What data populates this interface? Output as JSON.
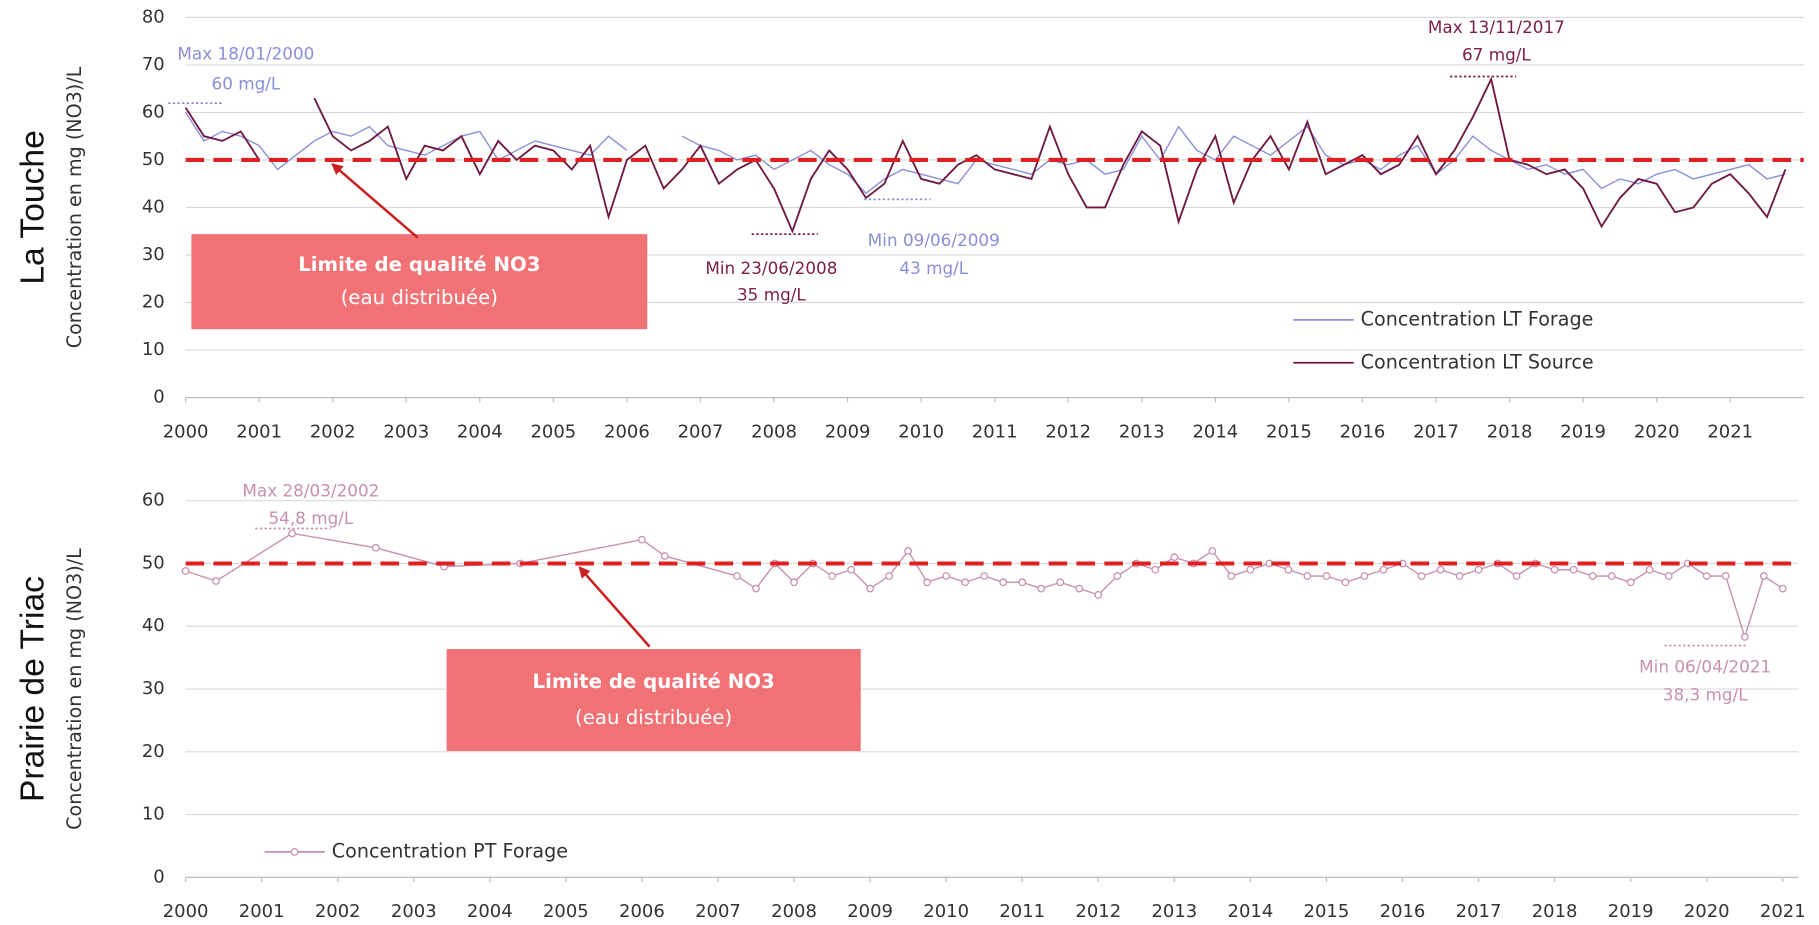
{
  "chart_data": [
    {
      "type": "line",
      "title": "La Touche",
      "ylabel": "Concentration en mg (NO3)/L",
      "x": [
        2000,
        2000.25,
        2000.5,
        2000.75,
        2001,
        2001.25,
        2001.5,
        2001.75,
        2002,
        2002.25,
        2002.5,
        2002.75,
        2003,
        2003.25,
        2003.5,
        2003.75,
        2004,
        2004.25,
        2004.5,
        2004.75,
        2005,
        2005.25,
        2005.5,
        2005.75,
        2006,
        2006.25,
        2006.5,
        2006.75,
        2007,
        2007.25,
        2007.5,
        2007.75,
        2008,
        2008.25,
        2008.5,
        2008.75,
        2009,
        2009.25,
        2009.5,
        2009.75,
        2010,
        2010.25,
        2010.5,
        2010.75,
        2011,
        2011.25,
        2011.5,
        2011.75,
        2012,
        2012.25,
        2012.5,
        2012.75,
        2013,
        2013.25,
        2013.5,
        2013.75,
        2014,
        2014.25,
        2014.5,
        2014.75,
        2015,
        2015.25,
        2015.5,
        2015.75,
        2016,
        2016.25,
        2016.5,
        2016.75,
        2017,
        2017.25,
        2017.5,
        2017.75,
        2018,
        2018.25,
        2018.5,
        2018.75,
        2019,
        2019.25,
        2019.5,
        2019.75,
        2020,
        2020.25,
        2020.5,
        2020.75,
        2021,
        2021.25,
        2021.5,
        2021.75
      ],
      "series": [
        {
          "name": "Concentration LT Forage",
          "color": "#8b8fd6",
          "values": [
            60,
            54,
            56,
            55,
            53,
            48,
            51,
            54,
            56,
            55,
            57,
            53,
            52,
            51,
            53,
            55,
            56,
            50,
            52,
            54,
            53,
            52,
            51,
            55,
            52,
            null,
            null,
            55,
            53,
            52,
            50,
            51,
            48,
            50,
            52,
            49,
            47,
            43,
            46,
            48,
            47,
            46,
            45,
            50,
            49,
            48,
            47,
            50,
            49,
            50,
            47,
            48,
            55,
            50,
            57,
            52,
            50,
            55,
            53,
            51,
            54,
            57,
            51,
            49,
            50,
            48,
            51,
            53,
            47,
            50,
            55,
            52,
            50,
            48,
            49,
            47,
            48,
            44,
            46,
            45,
            47,
            48,
            46,
            47,
            48,
            49,
            46,
            47
          ]
        },
        {
          "name": "Concentration LT Source",
          "color": "#6e1a43",
          "values": [
            61,
            55,
            54,
            56,
            50,
            null,
            null,
            63,
            55,
            52,
            54,
            57,
            46,
            53,
            52,
            55,
            47,
            54,
            50,
            53,
            52,
            48,
            53,
            38,
            50,
            53,
            44,
            48,
            53,
            45,
            48,
            50,
            44,
            35,
            46,
            52,
            48,
            42,
            45,
            54,
            46,
            45,
            49,
            51,
            48,
            47,
            46,
            57,
            47,
            40,
            40,
            49,
            56,
            53,
            37,
            48,
            55,
            41,
            50,
            55,
            48,
            58,
            47,
            49,
            51,
            47,
            49,
            55,
            47,
            52,
            59,
            67,
            50,
            49,
            47,
            48,
            44,
            36,
            42,
            46,
            45,
            39,
            40,
            45,
            47,
            43,
            38,
            48
          ]
        }
      ],
      "xlim": [
        2000,
        2022
      ],
      "xticks": [
        2000,
        2001,
        2002,
        2003,
        2004,
        2005,
        2006,
        2007,
        2008,
        2009,
        2010,
        2011,
        2012,
        2013,
        2014,
        2015,
        2016,
        2017,
        2018,
        2019,
        2020,
        2021
      ],
      "ylim": [
        0,
        80
      ],
      "yticks": [
        0,
        10,
        20,
        30,
        40,
        50,
        60,
        70,
        80
      ],
      "grid": true,
      "threshold": 50,
      "threshold_color": "#e02020",
      "threshold_label": [
        "Limite de qualité NO3",
        "(eau distribuée)"
      ],
      "annotations": [
        {
          "lines": [
            "Max 18/01/2000",
            "60 mg/L"
          ],
          "color": "#8b8fd6"
        },
        {
          "lines": [
            "Max 13/11/2017",
            "67 mg/L"
          ],
          "color": "#7b1f4a"
        },
        {
          "lines": [
            "Min 23/06/2008",
            "35 mg/L"
          ],
          "color": "#7b1f4a"
        },
        {
          "lines": [
            "Min 09/06/2009",
            "43 mg/L"
          ],
          "color": "#8b8fd6"
        }
      ],
      "legend": "bottom-right",
      "markers": false
    },
    {
      "type": "line",
      "title": "Prairie de Triac",
      "ylabel": "Concentration en mg (NO3)/L",
      "x": [
        2000,
        2000.4,
        2001.4,
        2002.5,
        2003.4,
        2004.4,
        2006,
        2006.3,
        2007.25,
        2007.5,
        2007.75,
        2008,
        2008.25,
        2008.5,
        2008.75,
        2009,
        2009.25,
        2009.5,
        2009.75,
        2010,
        2010.25,
        2010.5,
        2010.75,
        2011,
        2011.25,
        2011.5,
        2011.75,
        2012,
        2012.25,
        2012.5,
        2012.75,
        2013,
        2013.25,
        2013.5,
        2013.75,
        2014,
        2014.25,
        2014.5,
        2014.75,
        2015,
        2015.25,
        2015.5,
        2015.75,
        2016,
        2016.25,
        2016.5,
        2016.75,
        2017,
        2017.25,
        2017.5,
        2017.75,
        2018,
        2018.25,
        2018.5,
        2018.75,
        2019,
        2019.25,
        2019.5,
        2019.75,
        2020,
        2020.25,
        2020.5,
        2020.75,
        2021
      ],
      "series": [
        {
          "name": "Concentration PT Forage",
          "color": "#c890b0",
          "values": [
            48.8,
            47.2,
            54.8,
            52.5,
            49.5,
            50,
            53.8,
            51.2,
            48,
            46,
            50,
            47,
            50,
            48,
            49,
            46,
            48,
            52,
            47,
            48,
            47,
            48,
            47,
            47,
            46,
            47,
            46,
            45,
            48,
            50,
            49,
            51,
            50,
            52,
            48,
            49,
            50,
            49,
            48,
            48,
            47,
            48,
            49,
            50,
            48,
            49,
            48,
            49,
            50,
            48,
            50,
            49,
            49,
            48,
            48,
            47,
            49,
            48,
            50,
            48,
            48,
            38.3,
            48,
            46
          ]
        }
      ],
      "xlim": [
        2000,
        2021.2
      ],
      "xticks": [
        2000,
        2001,
        2002,
        2003,
        2004,
        2005,
        2006,
        2007,
        2008,
        2009,
        2010,
        2011,
        2012,
        2013,
        2014,
        2015,
        2016,
        2017,
        2018,
        2019,
        2020,
        2021
      ],
      "ylim": [
        0,
        60
      ],
      "yticks": [
        0,
        10,
        20,
        30,
        40,
        50,
        60
      ],
      "grid": true,
      "threshold": 50,
      "threshold_color": "#e02020",
      "threshold_label": [
        "Limite de qualité NO3",
        "(eau distribuée)"
      ],
      "annotations": [
        {
          "lines": [
            "Max 28/03/2002",
            "54,8 mg/L"
          ],
          "color": "#c890b0"
        },
        {
          "lines": [
            "Min 06/04/2021",
            "38,3 mg/L"
          ],
          "color": "#c890b0"
        }
      ],
      "legend": "bottom-left",
      "markers": true
    }
  ]
}
